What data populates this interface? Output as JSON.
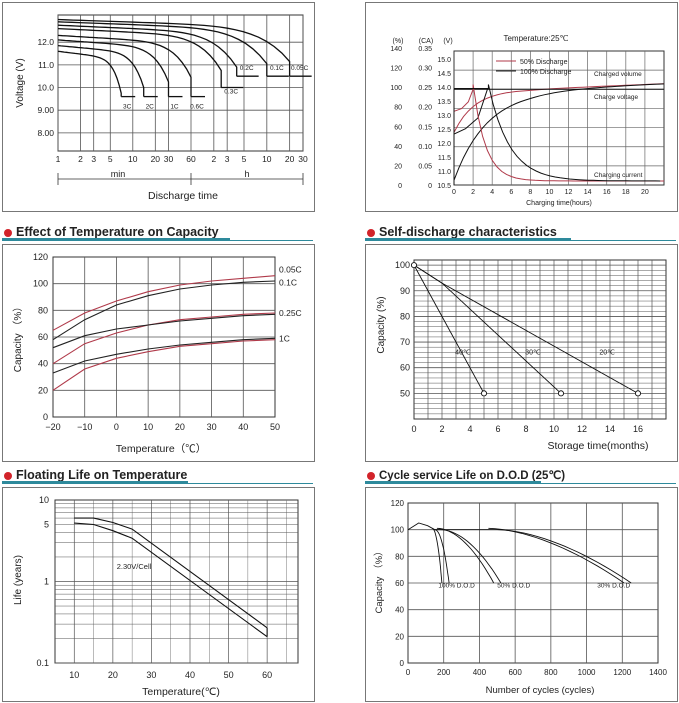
{
  "chart_data": [
    {
      "id": "discharge",
      "type": "line",
      "title": "",
      "ylabel": "Voltage (V)",
      "xlabel": "Discharge time",
      "y_ticks": [
        "12.0",
        "11.0",
        "10.0",
        "9.00",
        "8.00"
      ],
      "x_ticks_min": [
        "1",
        "2",
        "3",
        "5",
        "10",
        "20",
        "30",
        "60"
      ],
      "x_ticks_h": [
        "2",
        "3",
        "5",
        "10",
        "20",
        "30"
      ],
      "range_labels": {
        "min": "min",
        "h": "h"
      },
      "ylim": [
        7,
        13.4
      ],
      "series": [
        {
          "name": "3C",
          "end_min": 7,
          "cut": 9.6
        },
        {
          "name": "2C",
          "end_min": 14,
          "cut": 9.6
        },
        {
          "name": "1C",
          "end_min": 30,
          "cut": 9.6
        },
        {
          "name": "0.6C",
          "end_min": 60,
          "cut": 9.6
        },
        {
          "name": "0.3C",
          "end_min": 150,
          "cut": 10.0
        },
        {
          "name": "0.2C",
          "end_min": 240,
          "cut": 10.5
        },
        {
          "name": "0.1C",
          "end_min": 600,
          "cut": 10.5
        },
        {
          "name": "0.05C",
          "end_min": 1200,
          "cut": 10.5
        }
      ]
    },
    {
      "id": "charging",
      "type": "line",
      "title": "Temperature:25℃",
      "xlabel": "Charging time(hours)",
      "axis_units": [
        "(%)",
        "(CA)",
        "(V)"
      ],
      "y_ticks_pct": [
        "140",
        "120",
        "100",
        "80",
        "60",
        "40",
        "20",
        "0"
      ],
      "y_ticks_ca": [
        "0.35",
        "0.30",
        "0.25",
        "0.20",
        "0.15",
        "0.10",
        "0.05",
        "0"
      ],
      "y_ticks_v": [
        "15.0",
        "14.5",
        "14.0",
        "13.5",
        "13.0",
        "12.5",
        "12.0",
        "11.5",
        "11.0",
        "10.5"
      ],
      "x_ticks": [
        "0",
        "2",
        "4",
        "6",
        "8",
        "10",
        "12",
        "14",
        "16",
        "18",
        "20"
      ],
      "xlim": [
        0,
        22
      ],
      "legend": [
        {
          "name": "50% Discharge",
          "color": "#b03a4a"
        },
        {
          "name": "100% Discharge",
          "color": "#222222"
        }
      ],
      "curve_labels": [
        "Charged volume",
        "Charge voltage",
        "Charging current"
      ]
    },
    {
      "id": "temperature",
      "type": "line",
      "title": "Effect of Temperature on Capacity",
      "xlabel": "Temperature（℃）",
      "ylabel": "Capacity （%）",
      "x": [
        -20,
        -10,
        0,
        10,
        20,
        30,
        40,
        50
      ],
      "x_ticks": [
        "−20",
        "−10",
        "0",
        "10",
        "20",
        "30",
        "40",
        "50"
      ],
      "y_ticks": [
        "120",
        "100",
        "80",
        "60",
        "40",
        "20",
        "0"
      ],
      "xlim": [
        -20,
        50
      ],
      "ylim": [
        0,
        120
      ],
      "series": [
        {
          "name": "0.05C",
          "color": "#b03a4a",
          "values": [
            65,
            78,
            87,
            94,
            99,
            102,
            104,
            106
          ]
        },
        {
          "name": "0.1C",
          "color": "#222222",
          "values": [
            58,
            73,
            84,
            91,
            96,
            99,
            101,
            102
          ]
        },
        {
          "name": "0.25C",
          "color": "#b03a4a",
          "values": [
            40,
            55,
            63,
            69,
            73,
            75,
            77,
            78
          ]
        },
        {
          "name": "0.1C",
          "color": "#222222",
          "values": [
            52,
            61,
            66,
            69,
            72,
            74,
            76,
            77
          ]
        },
        {
          "name": "1C",
          "color": "#b03a4a",
          "values": [
            20,
            36,
            44,
            49,
            53,
            55,
            57,
            58
          ]
        },
        {
          "name": "1C",
          "color": "#222222",
          "values": [
            33,
            42,
            47,
            51,
            54,
            56,
            58,
            59
          ]
        }
      ],
      "labels": [
        "0.05C",
        "0.1C",
        "0.25C",
        "1C"
      ]
    },
    {
      "id": "self_discharge",
      "type": "line",
      "title": "Self-discharge characteristics",
      "xlabel": "Storage time(months)",
      "ylabel": "Capacity (%)",
      "x_ticks": [
        "0",
        "2",
        "4",
        "6",
        "8",
        "10",
        "12",
        "14",
        "16"
      ],
      "y_ticks": [
        "100",
        "90",
        "80",
        "70",
        "60",
        "50"
      ],
      "xlim": [
        0,
        18
      ],
      "ylim": [
        45,
        102
      ],
      "series": [
        {
          "name": "40℃",
          "x": [
            0,
            5
          ],
          "y": [
            100,
            50
          ]
        },
        {
          "name": "30℃",
          "x": [
            0,
            2,
            10.5
          ],
          "y": [
            100,
            93,
            50
          ]
        },
        {
          "name": "20℃",
          "x": [
            0,
            2,
            16
          ],
          "y": [
            100,
            93,
            50
          ]
        }
      ]
    },
    {
      "id": "floating_life",
      "type": "line",
      "title": "Floating Life on Temperature",
      "xlabel": "Temperature(℃)",
      "ylabel": "Life (years)",
      "x_ticks": [
        "10",
        "20",
        "30",
        "40",
        "50",
        "60"
      ],
      "y_ticks": [
        "10",
        "5",
        "1",
        "0.1"
      ],
      "xlim": [
        5,
        68
      ],
      "ylim": [
        0.1,
        10
      ],
      "y_scale": "log",
      "annotation": "2.30V/Cell",
      "series": [
        {
          "name": "upper",
          "x": [
            10,
            15,
            20,
            25,
            60
          ],
          "y": [
            6.0,
            6.0,
            5.3,
            4.4,
            0.27
          ]
        },
        {
          "name": "lower",
          "x": [
            10,
            15,
            20,
            25,
            60
          ],
          "y": [
            5.2,
            5.0,
            4.2,
            3.4,
            0.21
          ]
        }
      ]
    },
    {
      "id": "cycle_life",
      "type": "line",
      "title": "Cycle service Life on D.O.D (25℃)",
      "xlabel": "Number of cycles (cycles)",
      "ylabel": "Capacity （%）",
      "x_ticks": [
        "0",
        "200",
        "400",
        "600",
        "800",
        "1000",
        "1200",
        "1400"
      ],
      "y_ticks": [
        "120",
        "100",
        "80",
        "60",
        "40",
        "20",
        "0"
      ],
      "xlim": [
        0,
        1400
      ],
      "ylim": [
        0,
        120
      ],
      "series": [
        {
          "name": "100% D.O.D",
          "end": 230
        },
        {
          "name": "50% D.O.D",
          "end": 520
        },
        {
          "name": "30% D.O.D",
          "end": 1250
        }
      ]
    }
  ]
}
